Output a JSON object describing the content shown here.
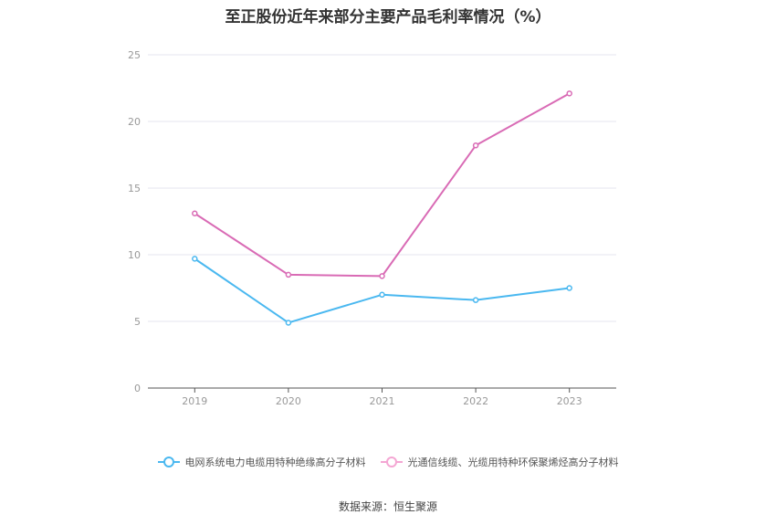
{
  "chart_data": {
    "type": "line",
    "title": "至正股份近年来部分主要产品毛利率情况（%）",
    "categories": [
      "2019",
      "2020",
      "2021",
      "2022",
      "2023"
    ],
    "ylim": [
      0,
      25
    ],
    "yticks": [
      "0",
      "5",
      "10",
      "15",
      "20",
      "25"
    ],
    "grid": true,
    "legend_position": "bottom",
    "series": [
      {
        "name": "电网系统电力电缆用特种绝缘高分子材料",
        "color": "#4ab8f0",
        "values": [
          9.7,
          4.9,
          7.0,
          6.6,
          7.5
        ]
      },
      {
        "name": "光通信线缆、光缆用特种环保聚烯烃高分子材料",
        "color": "#d96bb5",
        "values": [
          13.1,
          8.5,
          8.4,
          18.2,
          22.1
        ]
      }
    ],
    "source": "数据来源：恒生聚源"
  }
}
